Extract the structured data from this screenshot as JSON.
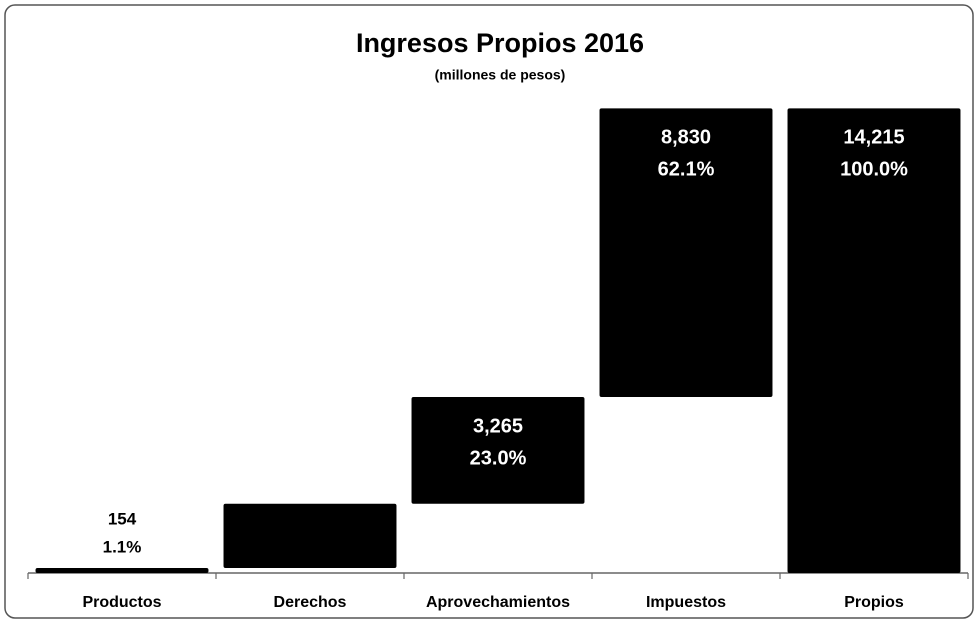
{
  "chart_data": {
    "type": "waterfall",
    "title": "Ingresos Propios 2016",
    "subtitle": "(millones de pesos)",
    "categories": [
      "Productos",
      "Derechos",
      "Aprovechamientos",
      "Impuestos",
      "Propios"
    ],
    "values": [
      154,
      1966,
      3265,
      8830,
      14215
    ],
    "value_labels": [
      "154",
      null,
      "3,265",
      "8,830",
      "14,215"
    ],
    "share_labels": [
      "1.1%",
      null,
      "23.0%",
      "62.1%",
      "100.0%"
    ],
    "totals": [
      false,
      false,
      false,
      false,
      true
    ],
    "color": "#000000",
    "ylim": [
      0,
      16000
    ],
    "grid": false
  }
}
